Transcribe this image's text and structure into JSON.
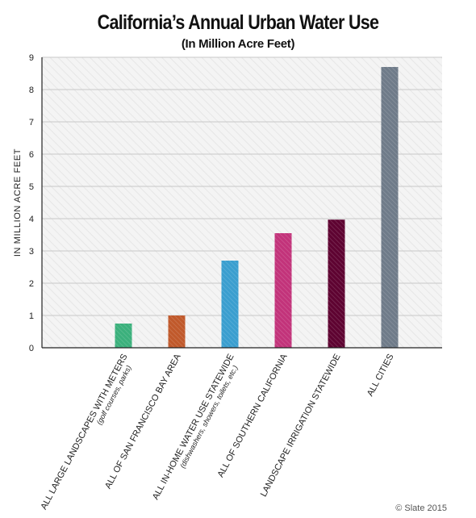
{
  "title": "California’s Annual Urban Water Use",
  "subtitle": "(In Million Acre Feet)",
  "credit": "© Slate 2015",
  "chart_data": {
    "type": "bar",
    "ylabel": "IN MILLION ACRE FEET",
    "xlabel": "",
    "ylim": [
      0,
      9
    ],
    "yticks": [
      0,
      1,
      2,
      3,
      4,
      5,
      6,
      7,
      8,
      9
    ],
    "grid": true,
    "categories": [
      {
        "label": "ALL LARGE LANDSCAPES WITH METERS",
        "sublabel": "(golf courses, parks)"
      },
      {
        "label": "ALL OF SAN FRANCISCO BAY AREA",
        "sublabel": ""
      },
      {
        "label": "ALL IN-HOME WATER USE STATEWIDE",
        "sublabel": "(dishwashers, showers, toilets, etc.)"
      },
      {
        "label": "ALL OF SOUTHERN CALIFORNIA",
        "sublabel": ""
      },
      {
        "label": "LANDSCAPE IRRIGATION STATEWIDE",
        "sublabel": ""
      },
      {
        "label": "ALL CITIES",
        "sublabel": ""
      }
    ],
    "values": [
      0.75,
      1.0,
      2.7,
      3.55,
      3.97,
      8.7
    ],
    "colors": [
      "#3bb07c",
      "#c0592b",
      "#3a9ecf",
      "#c2337a",
      "#5e0331",
      "#6f7b89"
    ]
  }
}
